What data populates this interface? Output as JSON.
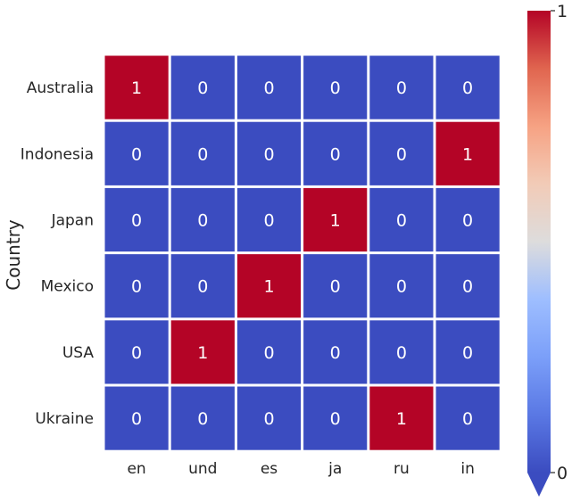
{
  "chart_data": {
    "type": "heatmap",
    "title": "",
    "xlabel": "",
    "ylabel": "Country",
    "x_categories": [
      "en",
      "und",
      "es",
      "ja",
      "ru",
      "in"
    ],
    "y_categories": [
      "Australia",
      "Indonesia",
      "Japan",
      "Mexico",
      "USA",
      "Ukraine"
    ],
    "values": [
      [
        1,
        0,
        0,
        0,
        0,
        0
      ],
      [
        0,
        0,
        0,
        0,
        0,
        1
      ],
      [
        0,
        0,
        0,
        1,
        0,
        0
      ],
      [
        0,
        0,
        1,
        0,
        0,
        0
      ],
      [
        0,
        1,
        0,
        0,
        0,
        0
      ],
      [
        0,
        0,
        0,
        0,
        1,
        0
      ]
    ],
    "value_range": [
      0,
      1
    ],
    "annotations": true,
    "colormap": "coolwarm",
    "colors": {
      "low": "#3b4cc0",
      "mid": "#dddddd",
      "high": "#b40426",
      "grid": "#ffffff"
    },
    "colorbar": {
      "ticks": [
        {
          "value": 0,
          "label": "0"
        },
        {
          "value": 1,
          "label": "1"
        }
      ],
      "extend": "min"
    }
  }
}
